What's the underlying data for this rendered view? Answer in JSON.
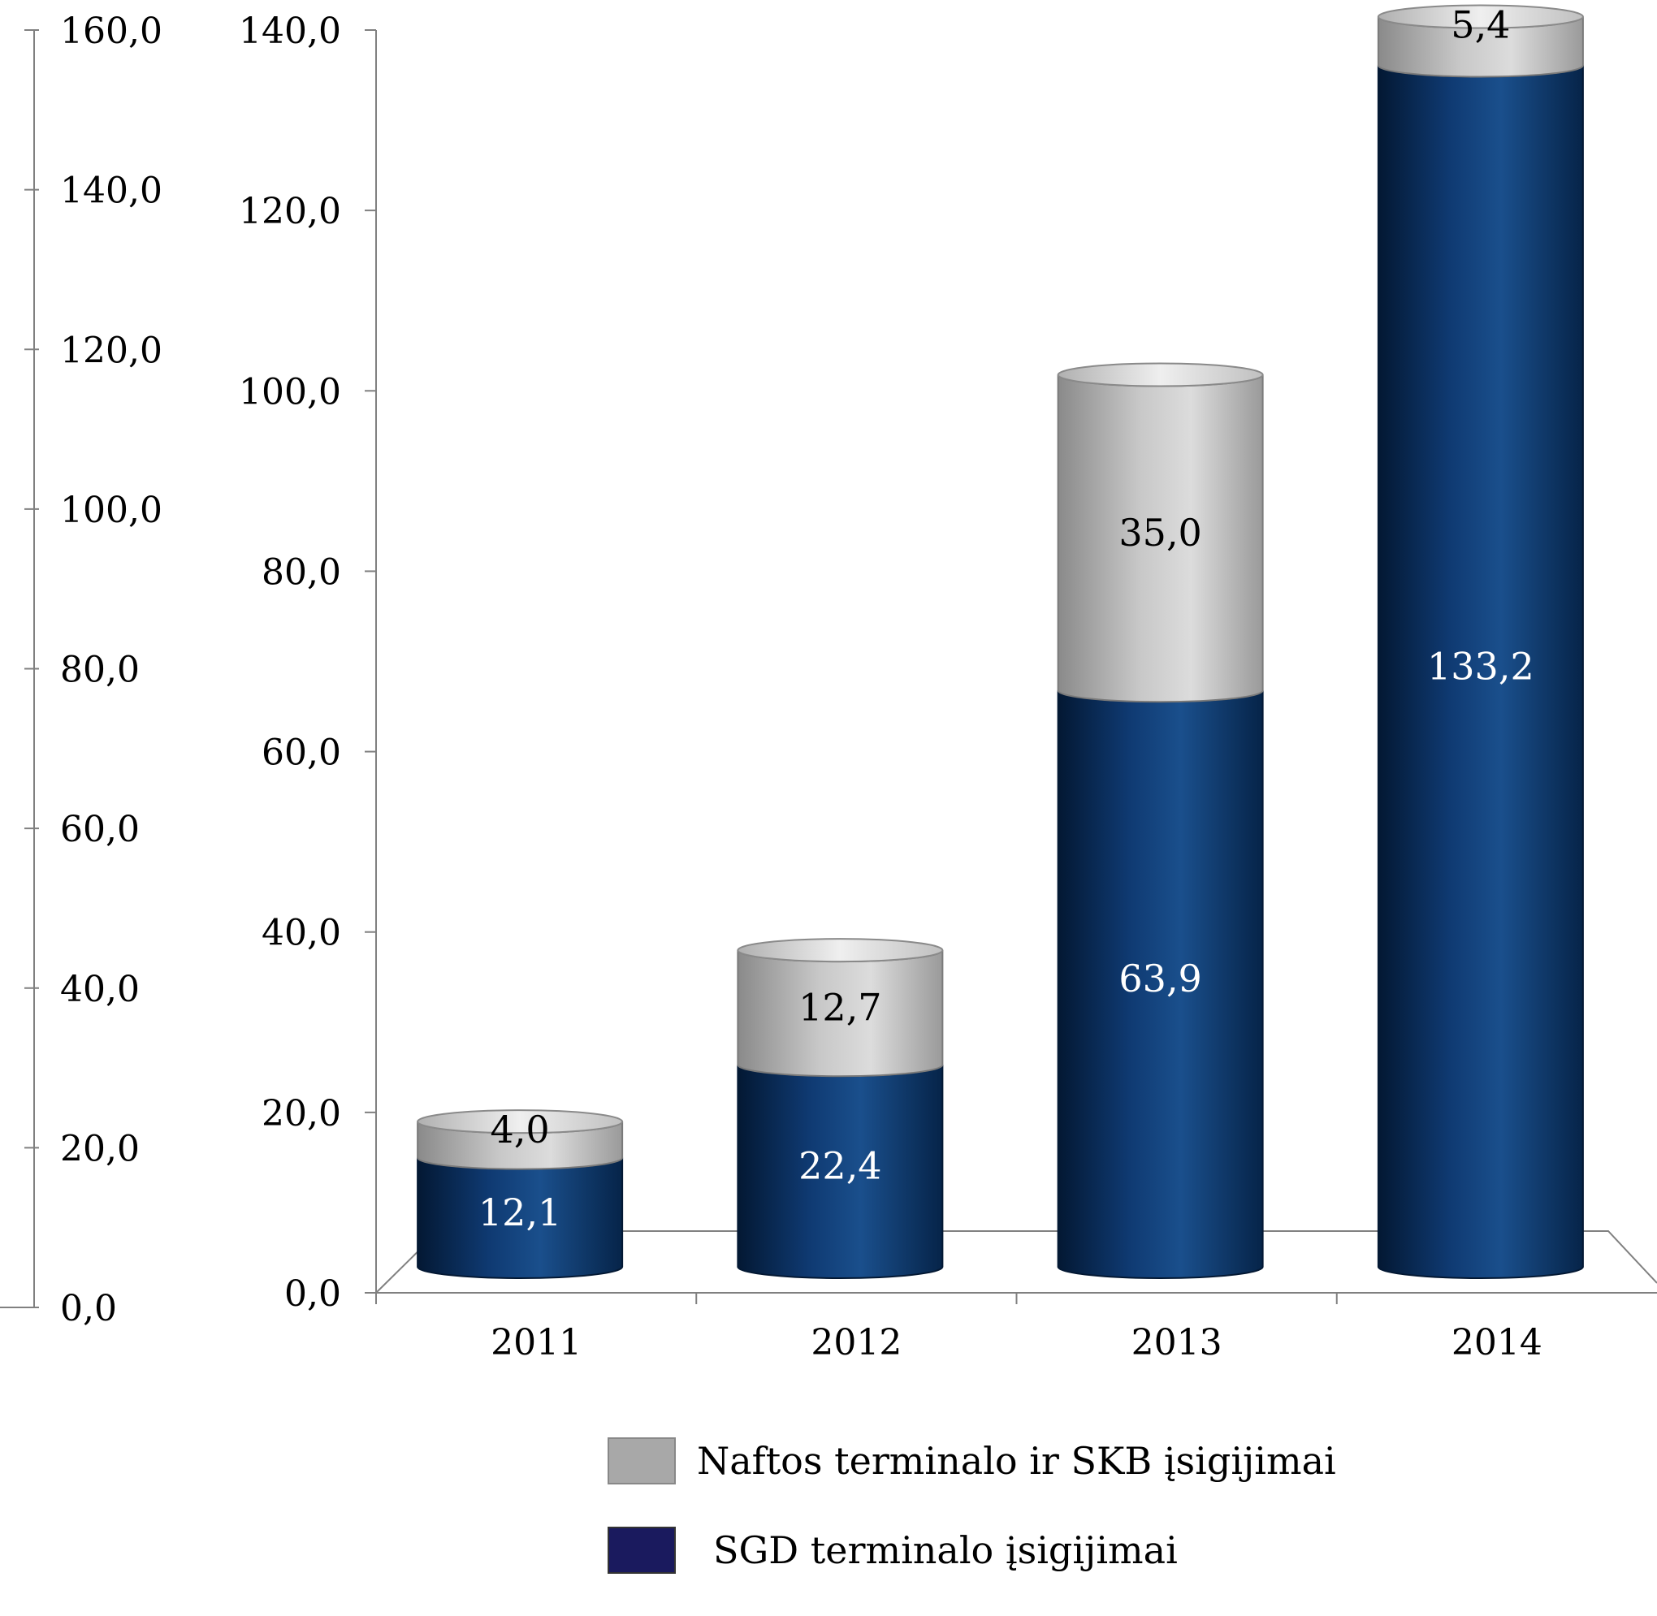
{
  "chart_data": {
    "type": "bar",
    "stacked": true,
    "categories": [
      "2011",
      "2012",
      "2013",
      "2014"
    ],
    "series": [
      {
        "name": "SGD terminalo įsigijimai",
        "values": [
          12.1,
          22.4,
          63.9,
          133.2
        ],
        "labels": [
          "12,1",
          "22,4",
          "63,9",
          "133,2"
        ],
        "color": "#0b2f63",
        "label_color": "#ffffff"
      },
      {
        "name": "Naftos terminalo ir SKB įsigijimai",
        "values": [
          4.0,
          12.7,
          35.0,
          5.4
        ],
        "labels": [
          "4,0",
          "12,7",
          "35,0",
          "5,4"
        ],
        "color": "#b5b5b5",
        "label_color": "#000000"
      }
    ],
    "primary_axis": {
      "ylim": [
        0,
        140
      ],
      "ticks": [
        "0,0",
        "20,0",
        "40,0",
        "60,0",
        "80,0",
        "100,0",
        "120,0",
        "140,0"
      ]
    },
    "secondary_axis": {
      "ylim": [
        0,
        160
      ],
      "ticks": [
        "0,0",
        "20,0",
        "40,0",
        "60,0",
        "80,0",
        "100,0",
        "120,0",
        "140,0",
        "160,0"
      ]
    },
    "grid": false,
    "style": "3d-cylinder",
    "legend_position": "bottom"
  },
  "legend": [
    {
      "label": "Naftos terminalo ir SKB įsigijimai",
      "color": "#a8a8a8"
    },
    {
      "label": "SGD terminalo įsigijimai",
      "color": "#1a1a5e"
    }
  ]
}
